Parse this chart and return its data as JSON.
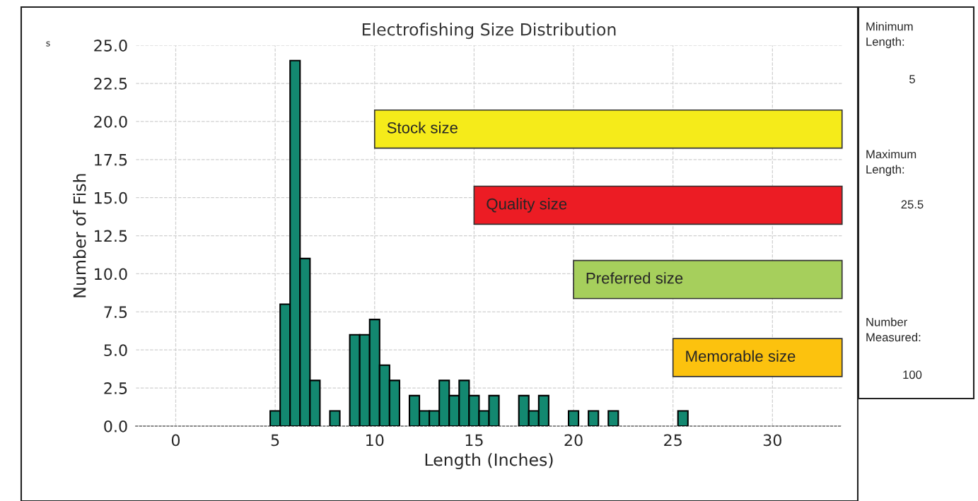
{
  "chart_data": {
    "type": "histogram",
    "title": "Electrofishing Size Distribution",
    "xlabel": "Length (Inches)",
    "ylabel": "Number of Fish",
    "bins": [
      4.75,
      5.25,
      5.75,
      6.25,
      6.75,
      7.25,
      7.75,
      8.25,
      8.75,
      9.25,
      9.75,
      10.25,
      10.75,
      11.25,
      11.75,
      12.25,
      12.75,
      13.25,
      13.75,
      14.25,
      14.75,
      15.25,
      15.75,
      16.25,
      16.75,
      17.25,
      17.75,
      18.25,
      18.75,
      19.25,
      19.75,
      20.25,
      20.75,
      21.25,
      21.75,
      22.25,
      22.75,
      23.25,
      23.75,
      24.25,
      24.75,
      25.25,
      25.75
    ],
    "values": [
      1,
      8,
      24,
      11,
      3,
      0,
      1,
      0,
      6,
      6,
      7,
      4,
      3,
      0,
      2,
      1,
      1,
      3,
      2,
      3,
      2,
      1,
      2,
      0,
      0,
      2,
      1,
      2,
      0,
      0,
      1,
      0,
      1,
      0,
      1,
      0,
      0,
      0,
      0,
      0,
      0,
      1
    ],
    "color": "#138870",
    "xlim": [
      -2,
      33.5
    ],
    "xticks": [
      0,
      5,
      10,
      15,
      20,
      25,
      30
    ],
    "ylim": [
      0,
      25
    ],
    "yticks": [
      {
        "value": 0,
        "label": "0.0"
      },
      {
        "value": 2.5,
        "label": "2.5"
      },
      {
        "value": 5,
        "label": "5.0"
      },
      {
        "value": 7.5,
        "label": "7.5"
      },
      {
        "value": 10,
        "label": "10.0"
      },
      {
        "value": 12.5,
        "label": "12.5"
      },
      {
        "value": 15,
        "label": "15.0"
      },
      {
        "value": 17.5,
        "label": "17.5"
      },
      {
        "value": 20,
        "label": "20.0"
      },
      {
        "value": 22.5,
        "label": "22.5"
      },
      {
        "value": 25,
        "label": "25.0"
      }
    ],
    "grid": true,
    "bands": [
      {
        "axis": "x",
        "from": 10,
        "to": 33.5,
        "label": "Stock size",
        "color": "#f5eb1a"
      },
      {
        "axis": "x",
        "from": 15,
        "to": 33.5,
        "label": "Quality size",
        "color": "#ec1c24"
      },
      {
        "axis": "x",
        "from": 20,
        "to": 33.5,
        "label": "Preferred size",
        "color": "#a6cf5c"
      },
      {
        "axis": "x",
        "from": 25,
        "to": 33.5,
        "label": "Memorable size",
        "color": "#fcc20e"
      }
    ],
    "annotations": [
      "s",
      "Minimum\nLength:",
      "5",
      "Maximum\nLength:",
      "25.5",
      "Number\nMeasured:",
      "100"
    ]
  }
}
